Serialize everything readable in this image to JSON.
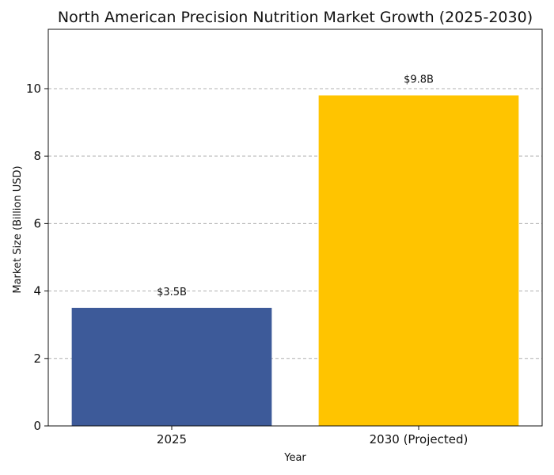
{
  "chart_data": {
    "type": "bar",
    "title": "North American Precision Nutrition Market Growth (2025-2030)",
    "xlabel": "Year",
    "ylabel": "Market Size (Billion USD)",
    "categories": [
      "2025",
      "2030 (Projected)"
    ],
    "values": [
      3.5,
      9.8
    ],
    "data_labels": [
      "$3.5B",
      "$9.8B"
    ],
    "colors": [
      "#3d5a99",
      "#ffc400"
    ],
    "ylim": [
      0,
      11.76
    ],
    "yticks": [
      0,
      2,
      4,
      6,
      8,
      10
    ],
    "grid": true,
    "grid_axis": "y",
    "legend": "none"
  }
}
